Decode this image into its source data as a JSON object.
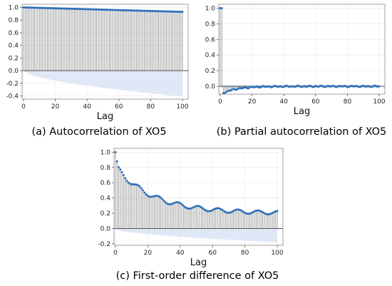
{
  "chart_data": [
    {
      "type": "stem",
      "caption": "(a) Autocorrelation of XO5",
      "xlabel": "Lag",
      "xlim": [
        0,
        100
      ],
      "ylim": [
        -0.45,
        1.05
      ],
      "xticks": [
        0,
        20,
        40,
        60,
        80,
        100
      ],
      "yticks": [
        -0.4,
        -0.2,
        0.0,
        0.2,
        0.4,
        0.6,
        0.8,
        1.0
      ],
      "ytick_labels": [
        "-0.4",
        "-0.2",
        "0.0",
        "0.2",
        "0.4",
        "0.6",
        "0.8",
        "1.0"
      ],
      "grid": true,
      "series": [
        {
          "lags": "0-100",
          "values": "linear decay from 1.0 at lag 0 to 0.93 at lag 100"
        }
      ],
      "confidence_band": {
        "lower_at_lag_100": -0.41,
        "shape": "widening from 0 at lag 0"
      }
    },
    {
      "type": "stem",
      "caption": "(b) Partial autocorrelation of XO5",
      "xlabel": "Lag",
      "xlim": [
        0,
        100
      ],
      "ylim": [
        -0.1,
        1.05
      ],
      "xticks": [
        0,
        20,
        40,
        60,
        80,
        100
      ],
      "yticks": [
        0.0,
        0.2,
        0.4,
        0.6,
        0.8,
        1.0
      ],
      "ytick_labels": [
        "0.0",
        "0.2",
        "0.4",
        "0.6",
        "0.8",
        "1.0"
      ],
      "grid": true,
      "series": [
        {
          "lags": "0-100",
          "values": "1.0 at lags 0 and 1, about -0.08 at lag 2 recovering to about 0 by lag 25, then near 0"
        }
      ],
      "confidence_band": {
        "half_width": 0.02
      }
    },
    {
      "type": "stem",
      "caption": "(c) First-order difference of XO5",
      "xlabel": "Lag",
      "xlim": [
        0,
        100
      ],
      "ylim": [
        -0.22,
        1.05
      ],
      "xticks": [
        0,
        20,
        40,
        60,
        80,
        100
      ],
      "yticks": [
        -0.2,
        0.0,
        0.2,
        0.4,
        0.6,
        0.8,
        1.0
      ],
      "ytick_labels": [
        "-0.2",
        "0.0",
        "0.2",
        "0.4",
        "0.6",
        "0.8",
        "1.0"
      ],
      "grid": true,
      "series": [
        {
          "lags": "0-100",
          "values": "1.0 at lag 0, 0.88 at lag 1, decaying with a periodic ripple (period about 12) to about 0.17 at lag 100"
        }
      ],
      "confidence_band": {
        "lower_at_lag_100": -0.18,
        "shape": "widening from 0 at lag 0"
      }
    }
  ]
}
